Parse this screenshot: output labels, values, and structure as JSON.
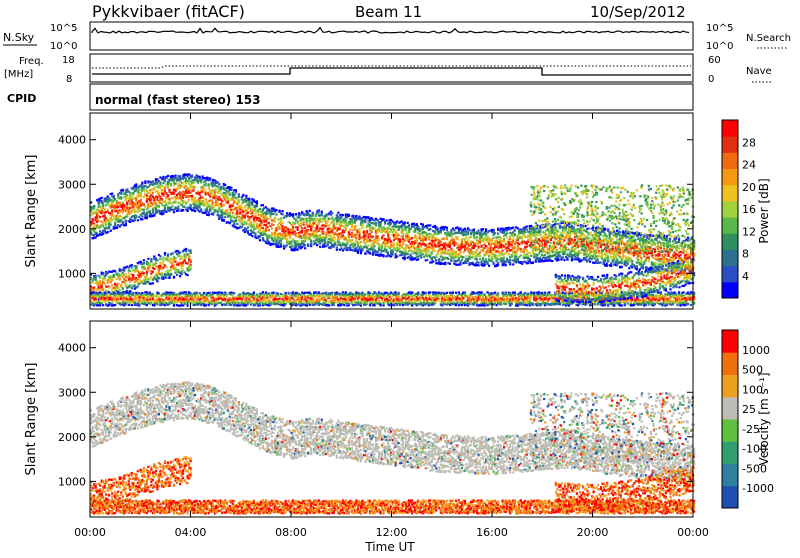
{
  "header": {
    "station": "Pykkvibaer (fitACF)",
    "beam": "Beam 11",
    "date": "10/Sep/2012"
  },
  "noise_panel": {
    "left_label": "N.Sky",
    "left_ticks": [
      "10^5",
      "10^0"
    ],
    "right_ticks": [
      "10^5",
      "10^0"
    ],
    "right_label": "N.Search"
  },
  "freq_panel": {
    "left_label_1": "Freq.",
    "left_label_2": "[MHz]",
    "left_ticks": [
      "18",
      "8"
    ],
    "right_ticks": [
      "60",
      "0"
    ],
    "right_label": "Nave"
  },
  "cpid": {
    "label": "CPID",
    "value": "normal (fast stereo) 153"
  },
  "chart_data": [
    {
      "type": "heatmap",
      "name": "power",
      "ylabel": "Slant Range [km]",
      "yticks": [
        "4000",
        "3000",
        "2000",
        "1000"
      ],
      "xticks": [
        "00:00",
        "04:00",
        "08:00",
        "12:00",
        "16:00",
        "20:00",
        "00:00"
      ],
      "colorbar_label": "Power [dB]",
      "colorbar_ticks": [
        "28",
        "24",
        "20",
        "16",
        "12",
        "8",
        "4"
      ],
      "colorbar_colors": [
        "#0000ff",
        "#2a4fc4",
        "#2f6f8f",
        "#2f8f5f",
        "#58b848",
        "#9fd23c",
        "#f0c020",
        "#f59a10",
        "#f06a10",
        "#e03010",
        "#ff0000"
      ],
      "ylim": [
        200,
        4600
      ],
      "xlim_hours": [
        0,
        24
      ],
      "bands": [
        {
          "label": "upper E-F band",
          "points": [
            [
              0,
              2200
            ],
            [
              1,
              2450
            ],
            [
              2,
              2650
            ],
            [
              3,
              2800
            ],
            [
              4,
              2850
            ],
            [
              5,
              2700
            ],
            [
              6,
              2400
            ],
            [
              7,
              2100
            ],
            [
              8,
              1950
            ],
            [
              9,
              2050
            ],
            [
              10,
              1950
            ],
            [
              12,
              1800
            ],
            [
              14,
              1650
            ],
            [
              16,
              1600
            ],
            [
              17,
              1650
            ],
            [
              18,
              1700
            ],
            [
              19,
              1750
            ],
            [
              20,
              1650
            ],
            [
              22,
              1500
            ],
            [
              24,
              1400
            ]
          ]
        },
        {
          "label": "lower band",
          "points": [
            [
              0,
              700
            ],
            [
              1,
              800
            ],
            [
              2,
              1000
            ],
            [
              3,
              1200
            ],
            [
              4,
              1300
            ]
          ]
        },
        {
          "label": "near range",
          "points": [
            [
              0,
              450
            ],
            [
              24,
              450
            ]
          ]
        },
        {
          "label": "late lower band",
          "points": [
            [
              18.5,
              700
            ],
            [
              20,
              650
            ],
            [
              22,
              800
            ],
            [
              24,
              1100
            ]
          ]
        }
      ]
    },
    {
      "type": "heatmap",
      "name": "velocity",
      "ylabel": "Slant Range [km]",
      "yticks": [
        "4000",
        "3000",
        "2000",
        "1000"
      ],
      "xticks": [
        "00:00",
        "04:00",
        "08:00",
        "12:00",
        "16:00",
        "20:00",
        "00:00"
      ],
      "xlabel": "Time UT",
      "colorbar_label": "Velocity [m s⁻¹]",
      "colorbar_ticks": [
        "1000",
        "500",
        "100",
        "25",
        "-25",
        "-100",
        "-500",
        "-1000"
      ],
      "colorbar_colors": [
        "#1f4fb0",
        "#2f7f9f",
        "#2f9f6f",
        "#5fc040",
        "#bdbdb5",
        "#f0a020",
        "#f07010",
        "#ff0000"
      ],
      "ylim": [
        200,
        4600
      ],
      "xlim_hours": [
        0,
        24
      ]
    }
  ]
}
